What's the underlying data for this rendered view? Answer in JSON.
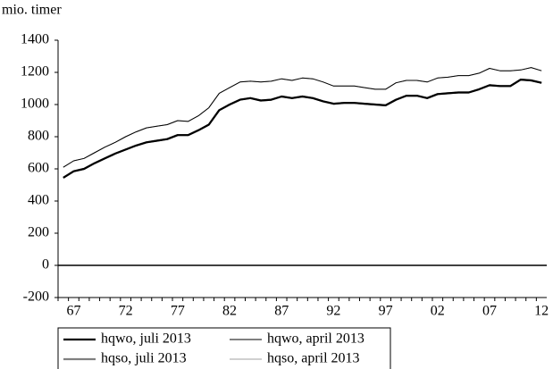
{
  "chart_data": {
    "type": "line",
    "y_label": "mio. timer",
    "categories": [
      null,
      "67",
      null,
      null,
      null,
      null,
      "72",
      null,
      null,
      null,
      null,
      "77",
      null,
      null,
      null,
      null,
      "82",
      null,
      null,
      null,
      null,
      "87",
      null,
      null,
      null,
      null,
      "92",
      null,
      null,
      null,
      null,
      "97",
      null,
      null,
      null,
      null,
      "02",
      null,
      null,
      null,
      null,
      "07",
      null,
      null,
      null,
      null,
      "12"
    ],
    "series": [
      {
        "name": "hqso, juli 2013",
        "color": "#808080",
        "width": 2.2,
        "values": [
          545,
          585,
          600,
          635,
          665,
          695,
          720,
          745,
          765,
          775,
          785,
          810,
          810,
          840,
          875,
          965,
          1000,
          1030,
          1040,
          1025,
          1030,
          1050,
          1040,
          1050,
          1040,
          1020,
          1005,
          1010,
          1010,
          1005,
          1000,
          995,
          1030,
          1055,
          1055,
          1040,
          1065,
          1070,
          1075,
          1075,
          1095,
          1120,
          1115,
          1115,
          1155,
          1150,
          1135
        ]
      },
      {
        "name": "hqso, april 2013",
        "color": "#a0a0a0",
        "width": 1,
        "values": [
          610,
          650,
          665,
          700,
          735,
          765,
          800,
          830,
          855,
          865,
          875,
          900,
          895,
          930,
          980,
          1070,
          1105,
          1140,
          1145,
          1140,
          1145,
          1160,
          1150,
          1165,
          1160,
          1140,
          1115,
          1115,
          1115,
          1105,
          1095,
          1095,
          1135,
          1150,
          1150,
          1140,
          1165,
          1170,
          1180,
          1180,
          1195,
          1225,
          1210,
          1210,
          1215,
          1230,
          1210
        ]
      },
      {
        "name": "hqwo, juli 2013",
        "color": "#000000",
        "width": 2.2,
        "values": [
          545,
          585,
          600,
          635,
          665,
          695,
          720,
          745,
          765,
          775,
          785,
          810,
          810,
          840,
          875,
          965,
          1000,
          1030,
          1040,
          1025,
          1030,
          1050,
          1040,
          1050,
          1040,
          1020,
          1005,
          1010,
          1010,
          1005,
          1000,
          995,
          1030,
          1055,
          1055,
          1040,
          1065,
          1070,
          1075,
          1075,
          1095,
          1120,
          1115,
          1115,
          1155,
          1150,
          1135
        ]
      },
      {
        "name": "hqwo, april 2013",
        "color": "#000000",
        "width": 1,
        "values": [
          610,
          650,
          665,
          700,
          735,
          765,
          800,
          830,
          855,
          865,
          875,
          900,
          895,
          930,
          980,
          1070,
          1105,
          1140,
          1145,
          1140,
          1145,
          1160,
          1150,
          1165,
          1160,
          1140,
          1115,
          1115,
          1115,
          1105,
          1095,
          1095,
          1135,
          1150,
          1150,
          1140,
          1165,
          1170,
          1180,
          1180,
          1195,
          1225,
          1210,
          1210,
          1215,
          1230,
          1210
        ]
      }
    ],
    "legend_order": [
      2,
      3,
      0,
      1
    ],
    "ylim": [
      -200,
      1400
    ],
    "yticks": [
      -200,
      0,
      200,
      400,
      600,
      800,
      1000,
      1200,
      1400
    ],
    "grid": false,
    "zero_line": true
  }
}
